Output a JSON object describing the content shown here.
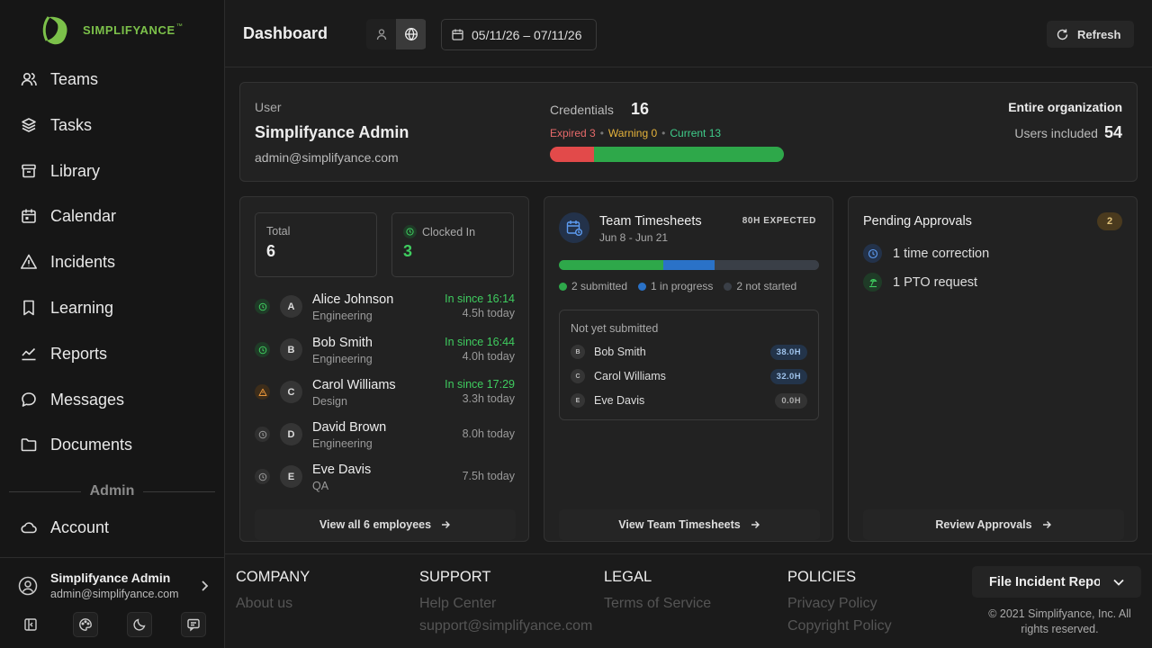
{
  "brand": {
    "name": "SIMPLIFYANCE",
    "trademark": "™",
    "color": "#7cc14a"
  },
  "sidebar": {
    "items": [
      {
        "label": "Teams",
        "icon": "users-icon"
      },
      {
        "label": "Tasks",
        "icon": "layers-icon"
      },
      {
        "label": "Library",
        "icon": "archive-icon"
      },
      {
        "label": "Calendar",
        "icon": "calendar-icon"
      },
      {
        "label": "Incidents",
        "icon": "warning-icon"
      },
      {
        "label": "Learning",
        "icon": "bookmark-icon"
      },
      {
        "label": "Reports",
        "icon": "chart-icon"
      },
      {
        "label": "Messages",
        "icon": "message-icon"
      },
      {
        "label": "Documents",
        "icon": "folder-icon"
      }
    ],
    "admin_label": "Admin",
    "admin_items": [
      {
        "label": "Account",
        "icon": "cloud-icon"
      }
    ],
    "user": {
      "name": "Simplifyance Admin",
      "email": "admin@simplifyance.com"
    }
  },
  "header": {
    "title": "Dashboard",
    "date_range": "05/11/26 – 07/11/26",
    "refresh_label": "Refresh"
  },
  "summary": {
    "user_label": "User",
    "user_name": "Simplifyance Admin",
    "user_email": "admin@simplifyance.com",
    "credentials_label": "Credentials",
    "credentials_count": "16",
    "expired": "Expired 3",
    "warning": "Warning 0",
    "current": "Current 13",
    "expired_value": 3,
    "warning_value": 0,
    "current_value": 13,
    "scope": "Entire organization",
    "users_included_label": "Users included",
    "users_included": "54",
    "colors": {
      "expired": "#e24a4a",
      "warning": "#e6b33b",
      "current": "#2ea84a"
    }
  },
  "attendance": {
    "total_label": "Total",
    "total": "6",
    "clocked_label": "Clocked In",
    "clocked": "3",
    "employees": [
      {
        "initial": "A",
        "name": "Alice Johnson",
        "dept": "Engineering",
        "since": "In since 16:14",
        "hours": "4.5h today",
        "status": "clocked-in"
      },
      {
        "initial": "B",
        "name": "Bob Smith",
        "dept": "Engineering",
        "since": "In since 16:44",
        "hours": "4.0h today",
        "status": "clocked-in"
      },
      {
        "initial": "C",
        "name": "Carol Williams",
        "dept": "Design",
        "since": "In since 17:29",
        "hours": "3.3h today",
        "status": "warning"
      },
      {
        "initial": "D",
        "name": "David Brown",
        "dept": "Engineering",
        "since": "",
        "hours": "8.0h today",
        "status": "out"
      },
      {
        "initial": "E",
        "name": "Eve Davis",
        "dept": "QA",
        "since": "",
        "hours": "7.5h today",
        "status": "out"
      }
    ],
    "view_all": "View all 6 employees"
  },
  "timesheets": {
    "title": "Team Timesheets",
    "range": "Jun 8 - Jun 21",
    "expected": "80H EXPECTED",
    "submitted_label": "2 submitted",
    "in_progress_label": "1 in progress",
    "not_started_label": "2 not started",
    "submitted": 2,
    "in_progress": 1,
    "not_started": 2,
    "colors": {
      "submitted": "#2ea84a",
      "in_progress": "#2a72c8",
      "not_started": "#3a3f47"
    },
    "not_submitted_title": "Not yet submitted",
    "not_submitted": [
      {
        "initial": "B",
        "name": "Bob Smith",
        "hours": "38.0H",
        "tone": "blue"
      },
      {
        "initial": "C",
        "name": "Carol Williams",
        "hours": "32.0H",
        "tone": "blue"
      },
      {
        "initial": "E",
        "name": "Eve Davis",
        "hours": "0.0H",
        "tone": "gray"
      }
    ],
    "view_label": "View Team Timesheets"
  },
  "approvals": {
    "title": "Pending Approvals",
    "count": "2",
    "items": [
      {
        "label": "1 time correction",
        "icon": "clock-icon"
      },
      {
        "label": "1 PTO request",
        "icon": "beach-icon"
      }
    ],
    "review_label": "Review Approvals"
  },
  "footer": {
    "company": {
      "title": "COMPANY",
      "links": [
        "About us"
      ]
    },
    "support": {
      "title": "SUPPORT",
      "links": [
        "Help Center",
        "support@simplifyance.com"
      ]
    },
    "legal": {
      "title": "LEGAL",
      "links": [
        "Terms of Service"
      ]
    },
    "policies": {
      "title": "POLICIES",
      "links": [
        "Privacy Policy",
        "Copyright Policy"
      ]
    },
    "incident_button": "File Incident Report",
    "copyright": "© 2021 Simplifyance, Inc. All rights reserved."
  }
}
